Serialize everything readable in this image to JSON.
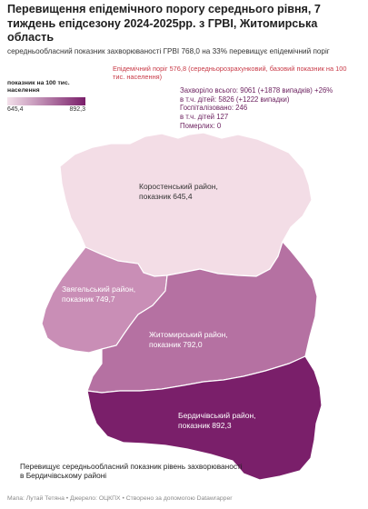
{
  "title": "Перевищення епідемічного порогу середнього рівня, 7 тиждень епідсезону 2024-2025рр. з ГРВІ, Житомирська область",
  "subtitle": "середньообласний показник захворюваності ГРВІ  768,0 на 33% перевищує епідемічний поріг",
  "threshold_note": "Епідемічний поріг 576,8 (середньорозрахунковий, базовий показник на 100 тис. населення)",
  "legend": {
    "title": "показник на 100 тис. населення",
    "min": "645,4",
    "max": "892,3",
    "color_min": "#f3e0ea",
    "color_max": "#7a1f6a"
  },
  "stats": {
    "sick_total": "Захворіло всього: 9061 (+1878 випадків) +26%",
    "children": "в т.ч. дітей: 5826 (+1222 випадки)",
    "hospitalized": "Госпіталізовано: 246",
    "hospitalized_children": "в т.ч. дітей 127",
    "died": "Померлих: 0"
  },
  "regions": [
    {
      "name": "Коростенський район",
      "label": "Коростенський район,\nпоказник 645,4",
      "value": 645.4,
      "color": "#f3dde6"
    },
    {
      "name": "Звягельський район",
      "label": "Звягельський район,\nпоказник  749,7",
      "value": 749.7,
      "color": "#c98eb6"
    },
    {
      "name": "Житомирський район",
      "label": "Житомирський район,\nпоказник 792,0",
      "value": 792.0,
      "color": "#b571a2"
    },
    {
      "name": "Бердичівський район",
      "label": "Бердичівський район,\nпоказник 892,3",
      "value": 892.3,
      "color": "#7a1f6a"
    }
  ],
  "note": "Перевищує середньообласний показник рівень захворюваності в  Бердичівському районі",
  "footer": "Мапа: Лутай Тетяна • Джерело: ОЦКПХ • Створено за допомогою Datawrapper"
}
